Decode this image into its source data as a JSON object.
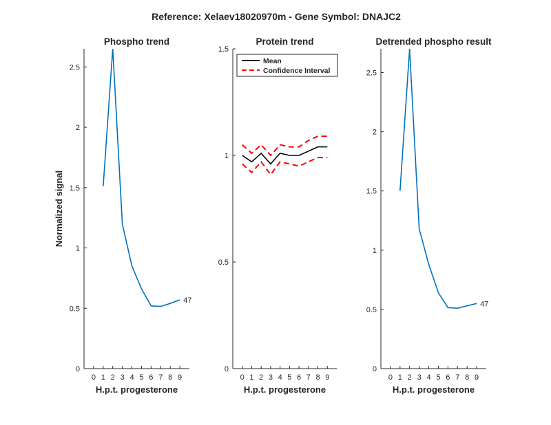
{
  "figure": {
    "suptitle": "Reference:  Xelaev18020970m - Gene Symbol:  DNAJC2"
  },
  "chart_data": [
    {
      "type": "line",
      "title": "Phospho trend",
      "xlabel": "H.p.t. progesterone",
      "ylabel": "Normalized signal",
      "xlim": [
        -1,
        10
      ],
      "ylim": [
        0,
        2.65
      ],
      "xticks": [
        0,
        1,
        2,
        3,
        4,
        5,
        6,
        7,
        8,
        9
      ],
      "yticks": [
        0,
        0.5,
        1,
        1.5,
        2,
        2.5
      ],
      "ytick_labels": [
        "0",
        "0.5",
        "1",
        "1.5",
        "2",
        "2.5"
      ],
      "series": [
        {
          "color": "#0072BD",
          "style": "solid",
          "x": [
            1,
            2,
            3,
            4,
            5,
            6,
            7,
            8,
            9
          ],
          "y": [
            1.51,
            2.65,
            1.2,
            0.85,
            0.66,
            0.52,
            0.515,
            0.54,
            0.57
          ]
        }
      ],
      "end_label": "47"
    },
    {
      "type": "line",
      "title": "Protein trend",
      "xlabel": "H.p.t. progesterone",
      "ylabel": "",
      "xlim": [
        -1,
        10
      ],
      "ylim": [
        0,
        1.5
      ],
      "xticks": [
        0,
        1,
        2,
        3,
        4,
        5,
        6,
        7,
        8,
        9
      ],
      "yticks": [
        0,
        0.5,
        1,
        1.5
      ],
      "ytick_labels": [
        "0",
        "0.5",
        "1",
        "1.5"
      ],
      "legend": {
        "position": "top-left",
        "entries": [
          "Mean",
          "Confidence Interval"
        ]
      },
      "series": [
        {
          "name": "Mean",
          "color": "#000000",
          "style": "solid",
          "x": [
            0,
            1,
            2,
            3,
            4,
            5,
            6,
            7,
            8,
            9
          ],
          "y": [
            1.0,
            0.97,
            1.01,
            0.96,
            1.01,
            1.0,
            1.0,
            1.02,
            1.04,
            1.04
          ]
        },
        {
          "name": "Confidence Interval",
          "color": "#FF0000",
          "style": "dashed",
          "x": [
            0,
            1,
            2,
            3,
            4,
            5,
            6,
            7,
            8,
            9
          ],
          "y": [
            1.05,
            1.01,
            1.05,
            1.0,
            1.05,
            1.04,
            1.04,
            1.07,
            1.09,
            1.09
          ]
        },
        {
          "color": "#FF0000",
          "style": "dashed",
          "x": [
            0,
            1,
            2,
            3,
            4,
            5,
            6,
            7,
            8,
            9
          ],
          "y": [
            0.96,
            0.92,
            0.97,
            0.91,
            0.97,
            0.96,
            0.95,
            0.97,
            0.99,
            0.99
          ]
        }
      ]
    },
    {
      "type": "line",
      "title": "Detrended phospho result",
      "xlabel": "H.p.t. progesterone",
      "ylabel": "",
      "xlim": [
        -1,
        10
      ],
      "ylim": [
        0,
        2.7
      ],
      "xticks": [
        0,
        1,
        2,
        3,
        4,
        5,
        6,
        7,
        8,
        9
      ],
      "yticks": [
        0,
        0.5,
        1,
        1.5,
        2,
        2.5
      ],
      "ytick_labels": [
        "0",
        "0.5",
        "1",
        "1.5",
        "2",
        "2.5"
      ],
      "series": [
        {
          "color": "#0072BD",
          "style": "solid",
          "x": [
            1,
            2,
            3,
            4,
            5,
            6,
            7,
            8,
            9
          ],
          "y": [
            1.5,
            2.7,
            1.18,
            0.88,
            0.64,
            0.515,
            0.51,
            0.53,
            0.55
          ]
        }
      ],
      "end_label": "47"
    }
  ]
}
